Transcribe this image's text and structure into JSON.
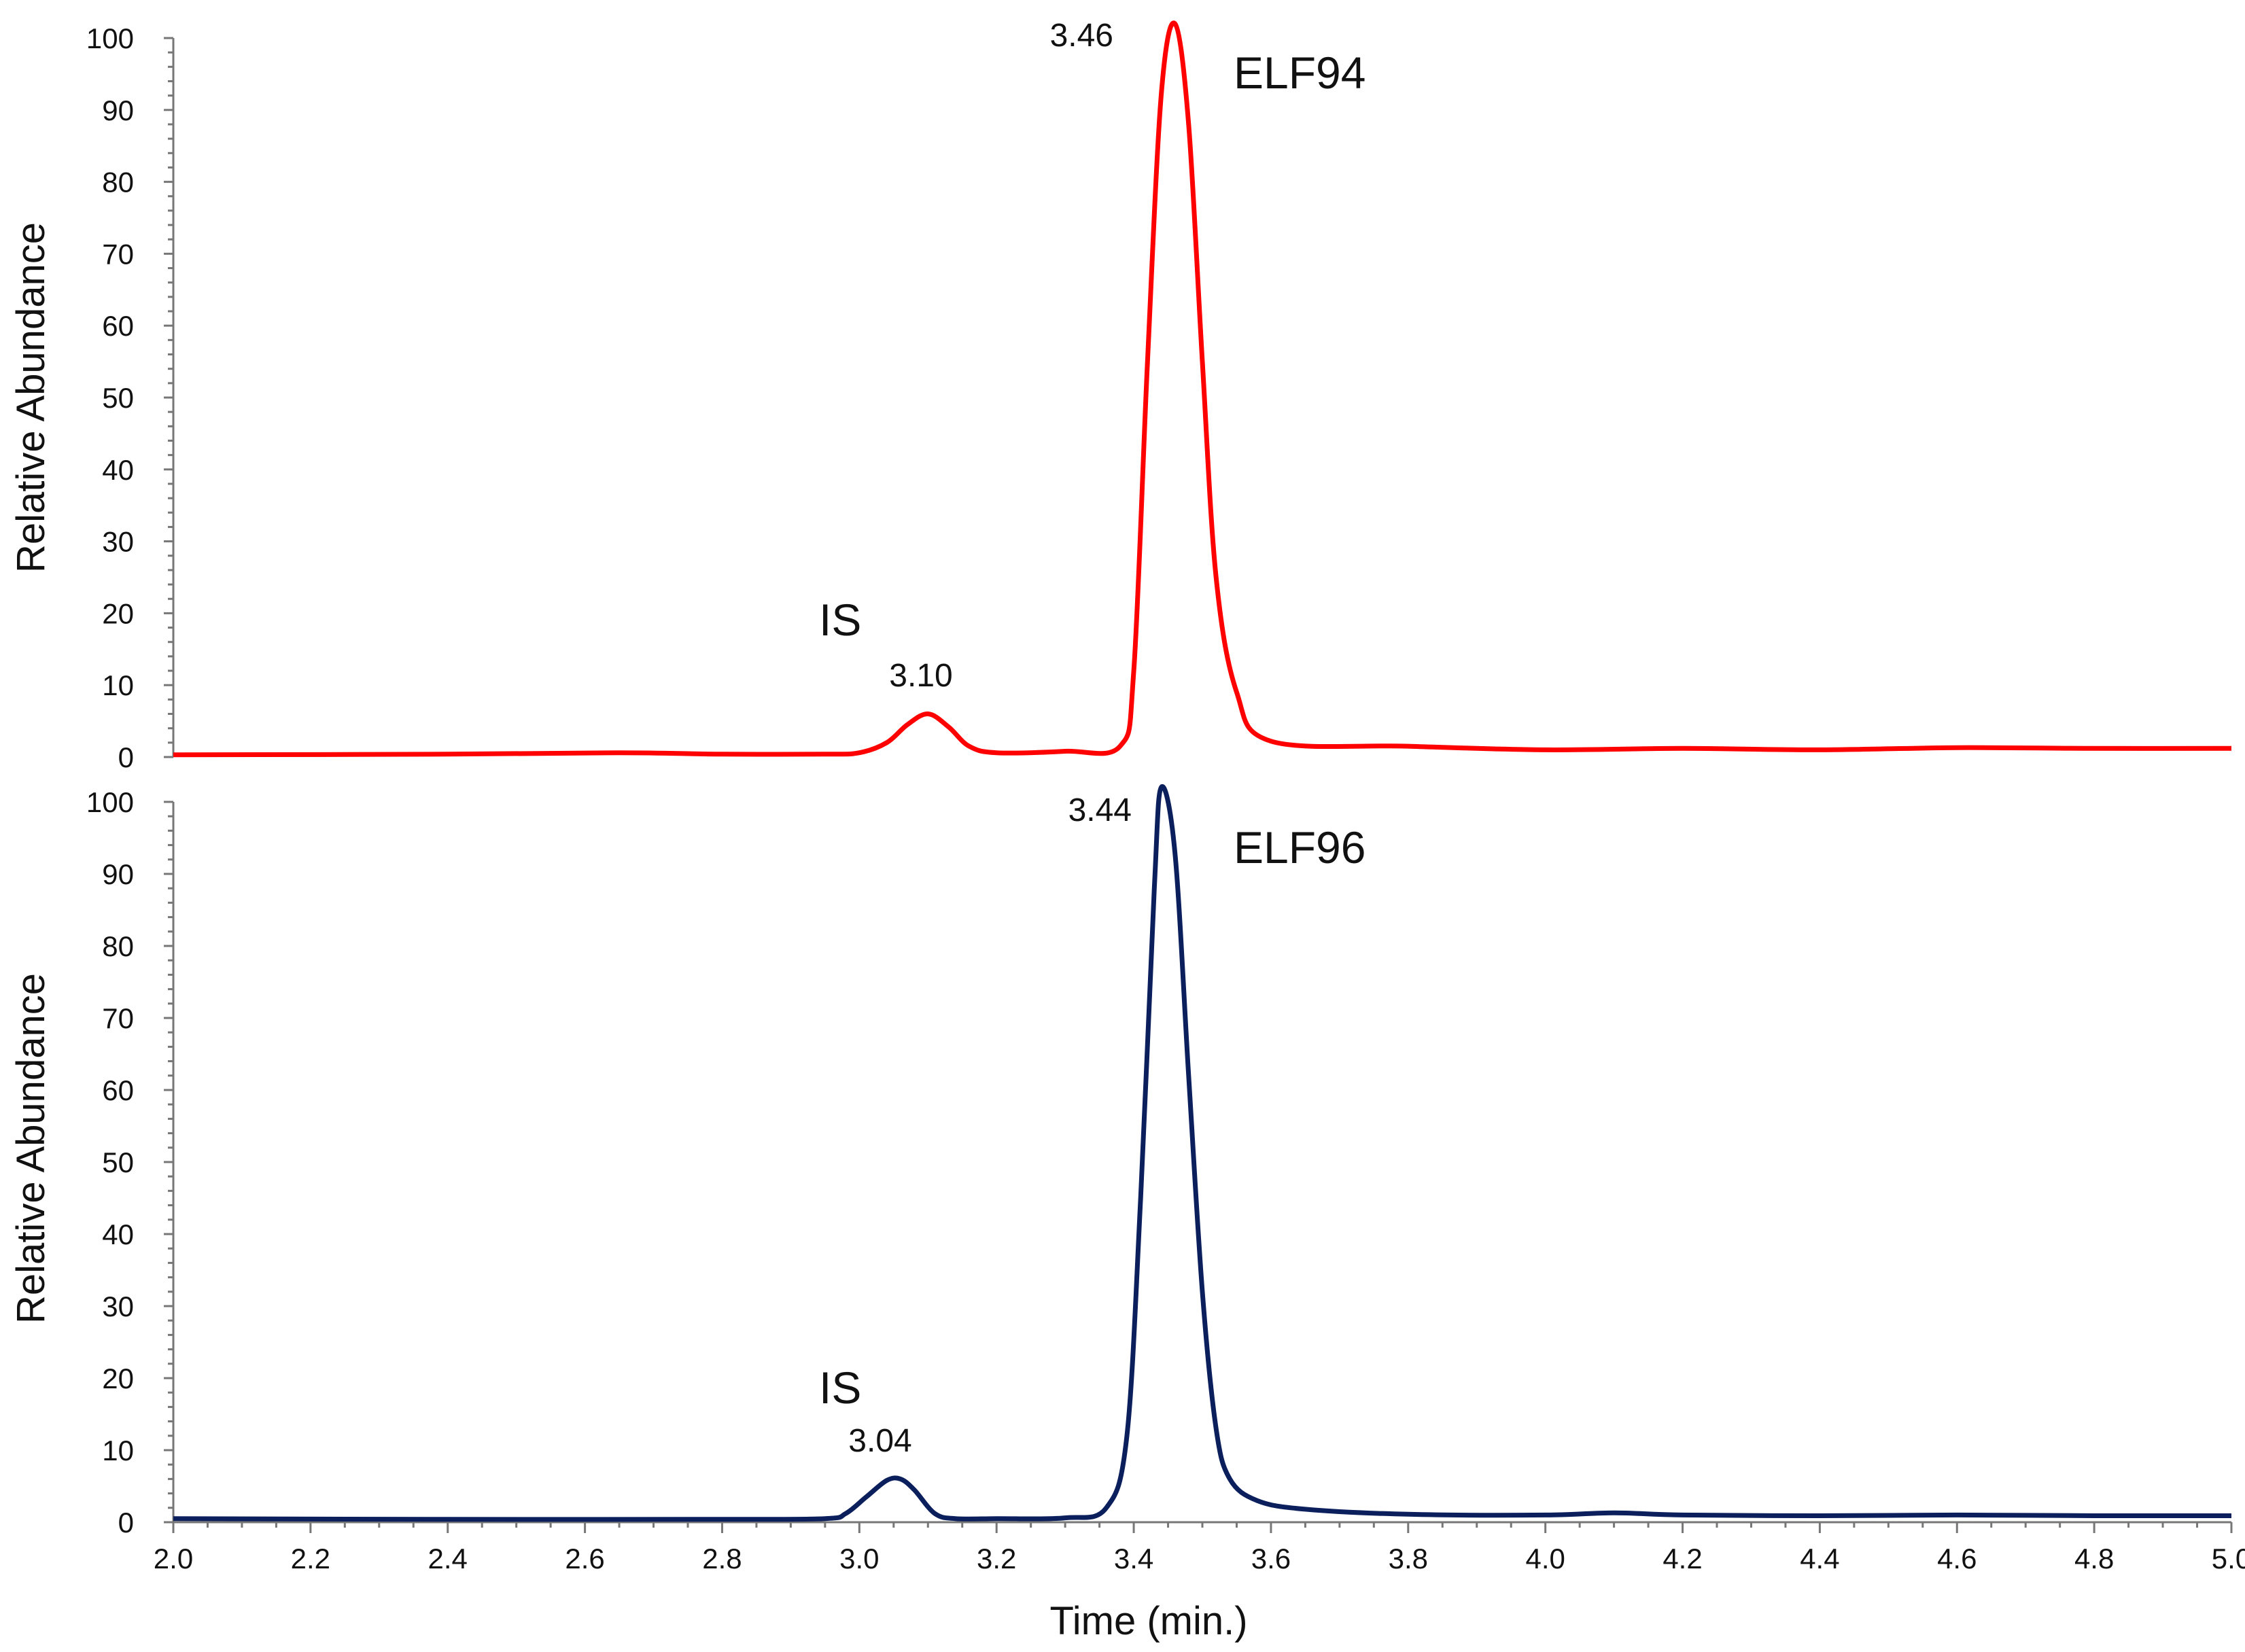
{
  "chart_data": [
    {
      "type": "line",
      "ylabel": "Relative Abundance",
      "xlim": [
        2.0,
        5.0
      ],
      "ylim": [
        0,
        100
      ],
      "y_ticks": [
        "0",
        "10",
        "20",
        "30",
        "40",
        "50",
        "60",
        "70",
        "80",
        "90",
        "100"
      ],
      "color": "#ff0000",
      "series": [
        {
          "x": [
            2.0,
            2.4,
            2.65,
            2.8,
            2.95,
            3.0,
            3.04,
            3.07,
            3.1,
            3.13,
            3.16,
            3.2,
            3.3,
            3.38,
            3.4,
            3.42,
            3.44,
            3.46,
            3.48,
            3.5,
            3.52,
            3.55,
            3.6,
            3.8,
            4.0,
            4.2,
            4.4,
            4.6,
            4.8,
            5.0
          ],
          "y": [
            0.3,
            0.4,
            0.6,
            0.4,
            0.4,
            0.6,
            2.0,
            4.5,
            6.0,
            4.2,
            1.5,
            0.6,
            0.8,
            1.5,
            12.0,
            55.0,
            92.0,
            102.0,
            88.0,
            55.0,
            25.0,
            9.0,
            2.2,
            1.5,
            1.0,
            1.2,
            1.0,
            1.3,
            1.2,
            1.2
          ]
        }
      ],
      "annotations": [
        {
          "text": "3.46",
          "kind": "peak"
        },
        {
          "text": "3.10",
          "kind": "peak"
        },
        {
          "text": "ELF94",
          "kind": "compound"
        },
        {
          "text": "IS",
          "kind": "compound"
        }
      ]
    },
    {
      "type": "line",
      "xlabel": "Time (min.)",
      "ylabel": "Relative Abundance",
      "xlim": [
        2.0,
        5.0
      ],
      "ylim": [
        0,
        100
      ],
      "x_ticks": [
        "2.0",
        "2.2",
        "2.4",
        "2.6",
        "2.8",
        "3.0",
        "3.2",
        "3.4",
        "3.6",
        "3.8",
        "4.0",
        "4.2",
        "4.4",
        "4.6",
        "4.8",
        "5.0"
      ],
      "y_ticks": [
        "0",
        "10",
        "20",
        "30",
        "40",
        "50",
        "60",
        "70",
        "80",
        "90",
        "100"
      ],
      "color": "#0a1f5c",
      "series": [
        {
          "x": [
            2.0,
            2.4,
            2.8,
            2.95,
            2.98,
            3.01,
            3.04,
            3.06,
            3.08,
            3.11,
            3.14,
            3.2,
            3.3,
            3.36,
            3.39,
            3.41,
            3.43,
            3.44,
            3.46,
            3.48,
            3.5,
            3.52,
            3.54,
            3.58,
            3.65,
            3.8,
            4.0,
            4.1,
            4.2,
            4.4,
            4.6,
            4.8,
            5.0
          ],
          "y": [
            0.5,
            0.4,
            0.4,
            0.5,
            1.2,
            3.5,
            5.8,
            6.0,
            4.5,
            1.2,
            0.5,
            0.5,
            0.6,
            2.0,
            12.0,
            45.0,
            88.0,
            102.0,
            93.0,
            62.0,
            32.0,
            13.0,
            6.0,
            3.0,
            1.8,
            1.1,
            1.0,
            1.3,
            1.0,
            0.9,
            1.0,
            0.9,
            0.9
          ]
        }
      ],
      "annotations": [
        {
          "text": "3.44",
          "kind": "peak"
        },
        {
          "text": "3.04",
          "kind": "peak"
        },
        {
          "text": "ELF96",
          "kind": "compound"
        },
        {
          "text": "IS",
          "kind": "compound"
        }
      ]
    }
  ]
}
